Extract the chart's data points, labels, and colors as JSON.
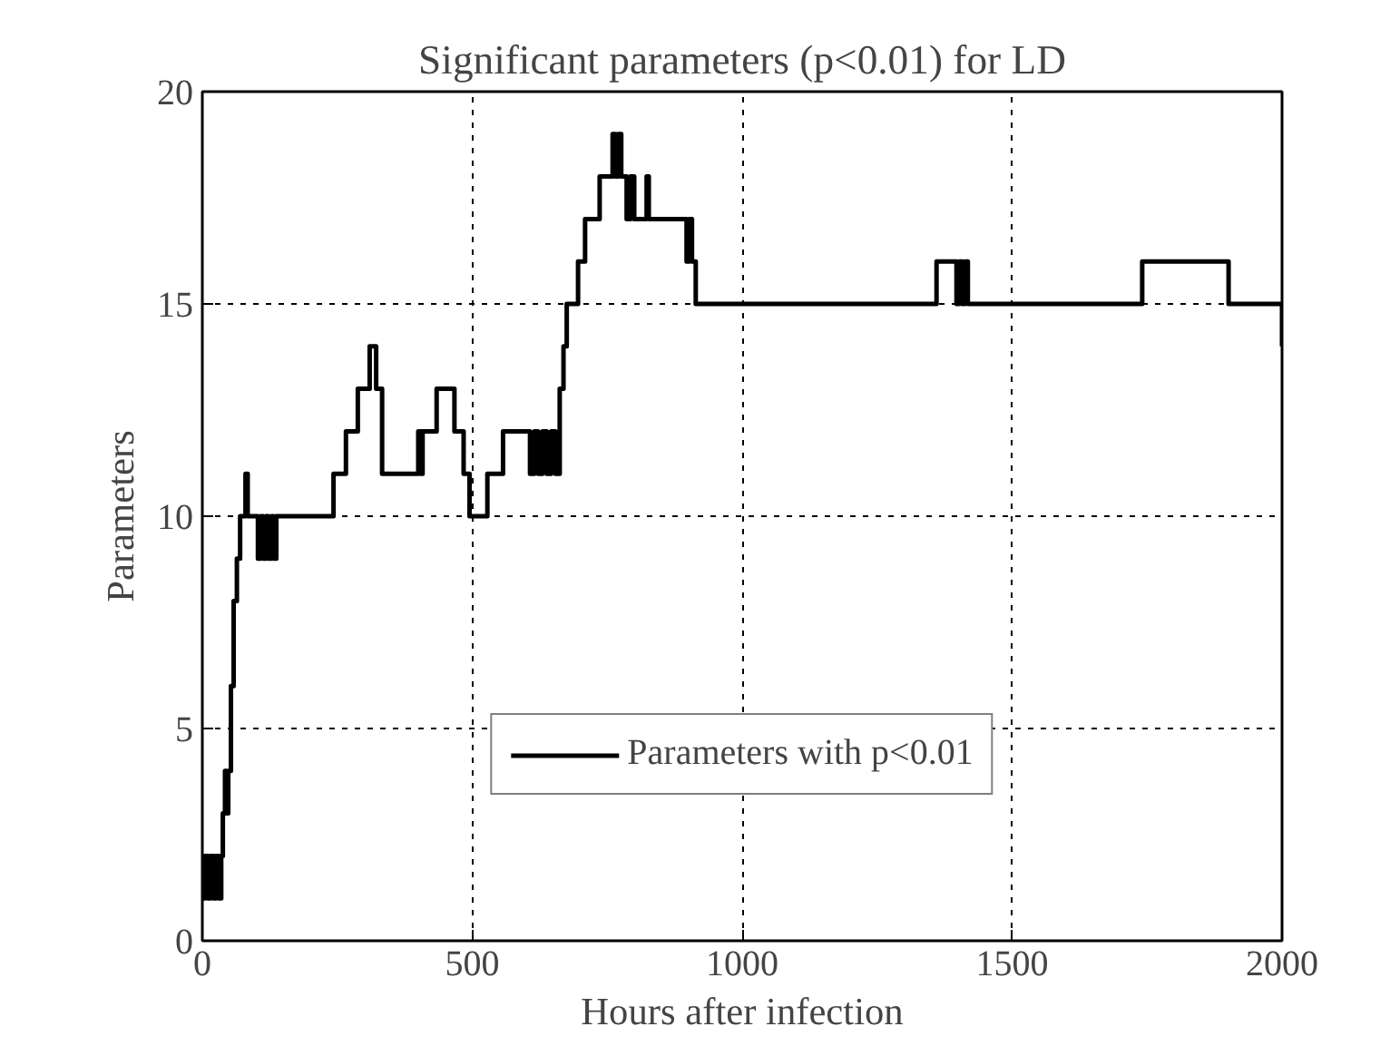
{
  "chart_data": {
    "type": "step",
    "title": "Significant parameters (p<0.01) for LD",
    "xlabel": "Hours after infection",
    "ylabel": "Parameters",
    "series": [
      {
        "name": "Parameters with p<0.01",
        "color": "#000000",
        "x": [
          0,
          5,
          10,
          15,
          20,
          25,
          30,
          35,
          38,
          42,
          45,
          48,
          53,
          58,
          64,
          70,
          80,
          84,
          103,
          108,
          113,
          118,
          123,
          128,
          132,
          137,
          243,
          266,
          288,
          310,
          322,
          333,
          400,
          404,
          408,
          434,
          467,
          484,
          495,
          528,
          557,
          607,
          615,
          622,
          630,
          638,
          646,
          654,
          662,
          669,
          675,
          696,
          709,
          736,
          760,
          765,
          770,
          776,
          786,
          793,
          800,
          823,
          827,
          897,
          902,
          907,
          914,
          1360,
          1397,
          1402,
          1408,
          1413,
          1418,
          1741,
          1901,
          2000
        ],
        "values": [
          1,
          2,
          1,
          2,
          1,
          2,
          1,
          2,
          3,
          4,
          3,
          4,
          6,
          8,
          9,
          10,
          11,
          10,
          9,
          10,
          9,
          10,
          9,
          10,
          9,
          10,
          11,
          12,
          13,
          14,
          13,
          11,
          12,
          11,
          12,
          13,
          12,
          11,
          10,
          11,
          12,
          11,
          12,
          11,
          12,
          11,
          12,
          11,
          13,
          14,
          15,
          16,
          17,
          18,
          19,
          18,
          19,
          18,
          17,
          18,
          17,
          18,
          17,
          16,
          17,
          16,
          15,
          16,
          15,
          16,
          15,
          16,
          15,
          16,
          15,
          14
        ]
      }
    ],
    "xlim": [
      0,
      2000
    ],
    "ylim": [
      0,
      20
    ],
    "xticks": [
      0,
      500,
      1000,
      1500,
      2000
    ],
    "yticks": [
      0,
      5,
      10,
      15,
      20
    ],
    "grid": true,
    "legend": "bottom",
    "marker": "none",
    "line_style": "solid"
  }
}
